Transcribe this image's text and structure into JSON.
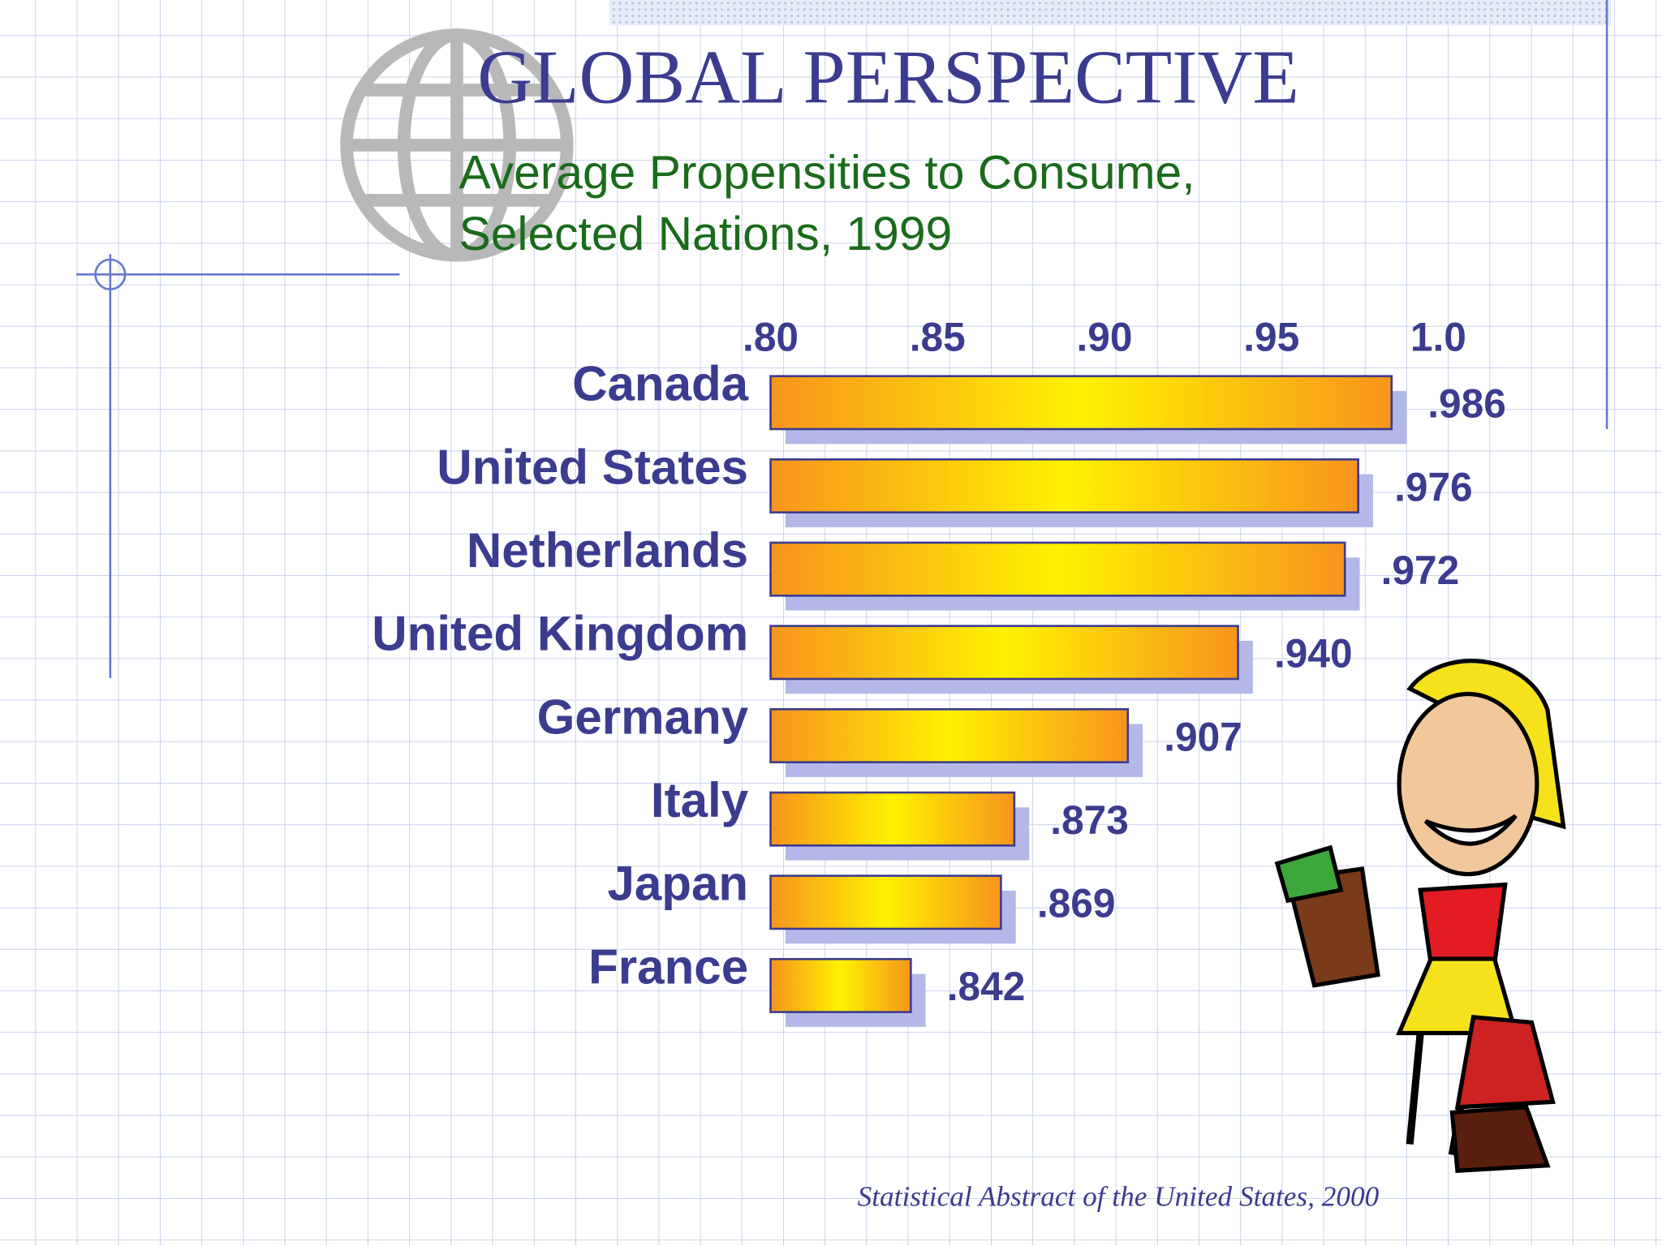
{
  "chart_data": {
    "type": "bar",
    "orientation": "horizontal",
    "title": "GLOBAL  PERSPECTIVE",
    "subtitle": [
      "Average Propensities to Consume,",
      "Selected Nations, 1999"
    ],
    "categories": [
      "Canada",
      "United States",
      "Netherlands",
      "United Kingdom",
      "Germany",
      "Italy",
      "Japan",
      "France"
    ],
    "values": [
      0.986,
      0.976,
      0.972,
      0.94,
      0.907,
      0.873,
      0.869,
      0.842
    ],
    "value_labels": [
      ".986",
      ".976",
      ".972",
      ".940",
      ".907",
      ".873",
      ".869",
      ".842"
    ],
    "xlim": [
      0.8,
      1.0
    ],
    "xticks": [
      {
        "value": 0.8,
        "label": ".80"
      },
      {
        "value": 0.85,
        "label": ".85"
      },
      {
        "value": 0.9,
        "label": ".90"
      },
      {
        "value": 0.95,
        "label": ".95"
      },
      {
        "value": 1.0,
        "label": "1.0"
      }
    ],
    "source": "Statistical Abstract of the United States, 2000"
  }
}
